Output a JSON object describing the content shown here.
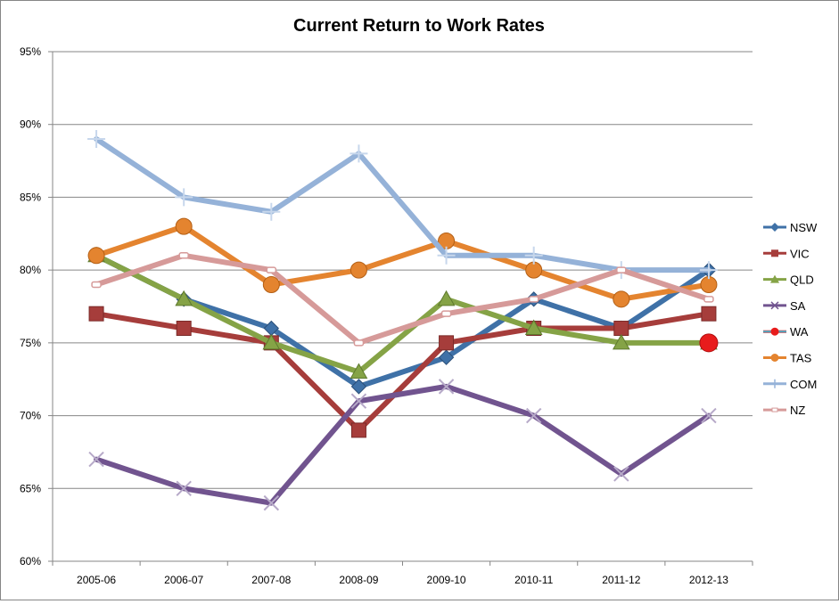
{
  "chart_data": {
    "type": "line",
    "title": "Current Return to Work Rates",
    "xlabel": "",
    "ylabel": "",
    "categories": [
      "2005-06",
      "2006-07",
      "2007-08",
      "2008-09",
      "2009-10",
      "2010-11",
      "2011-12",
      "2012-13"
    ],
    "ylim": [
      60,
      95
    ],
    "y_ticks": [
      "60%",
      "65%",
      "70%",
      "75%",
      "80%",
      "85%",
      "90%",
      "95%"
    ],
    "grid": true,
    "legend_position": "right",
    "series": [
      {
        "name": "NSW",
        "color": "#3f71a7",
        "marker": "diamond",
        "values": [
          81,
          78,
          76,
          72,
          74,
          78,
          76,
          80
        ]
      },
      {
        "name": "VIC",
        "color": "#a63d3b",
        "marker": "square",
        "values": [
          77,
          76,
          75,
          69,
          75,
          76,
          76,
          77
        ]
      },
      {
        "name": "QLD",
        "color": "#85a346",
        "marker": "triangle",
        "values": [
          81,
          78,
          75,
          73,
          78,
          76,
          75,
          75
        ]
      },
      {
        "name": "SA",
        "color": "#71548f",
        "marker": "x",
        "values": [
          67,
          65,
          64,
          71,
          72,
          70,
          66,
          70
        ]
      },
      {
        "name": "WA",
        "color": "#e81c1c",
        "marker": "circle",
        "values": [
          null,
          null,
          null,
          null,
          null,
          null,
          null,
          75
        ]
      },
      {
        "name": "TAS",
        "color": "#e4842f",
        "marker": "circle",
        "values": [
          81,
          83,
          79,
          80,
          82,
          80,
          78,
          79
        ]
      },
      {
        "name": "COM",
        "color": "#95b2d8",
        "marker": "plus",
        "values": [
          89,
          85,
          84,
          88,
          81,
          81,
          80,
          80
        ]
      },
      {
        "name": "NZ",
        "color": "#d69a99",
        "marker": "dash",
        "values": [
          79,
          81,
          80,
          75,
          77,
          78,
          80,
          78
        ]
      }
    ]
  }
}
